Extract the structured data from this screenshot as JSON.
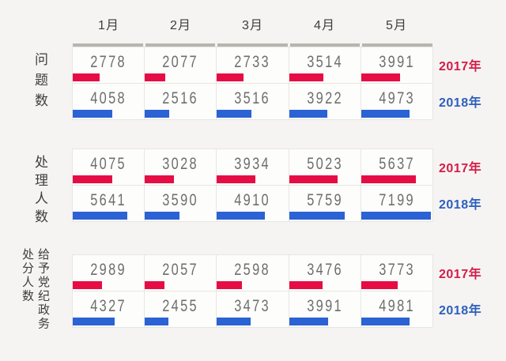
{
  "chart_data": {
    "type": "bar",
    "title": "",
    "categories": [
      "1月",
      "2月",
      "3月",
      "4月",
      "5月"
    ],
    "scale_max": 7350,
    "legend_position": "right",
    "grid": true,
    "sections": [
      {
        "label": "问题数",
        "series": [
          {
            "name": "2017年",
            "values": [
              2778,
              2077,
              2733,
              3514,
              3991
            ]
          },
          {
            "name": "2018年",
            "values": [
              4058,
              2516,
              3516,
              3922,
              4973
            ]
          }
        ]
      },
      {
        "label": "处理人数",
        "series": [
          {
            "name": "2017年",
            "values": [
              4075,
              3028,
              3934,
              5023,
              5637
            ]
          },
          {
            "name": "2018年",
            "values": [
              5641,
              3590,
              4910,
              5759,
              7199
            ]
          }
        ]
      },
      {
        "label": "给予党纪政务处分人数",
        "series": [
          {
            "name": "2017年",
            "values": [
              2989,
              2057,
              2598,
              3476,
              3773
            ]
          },
          {
            "name": "2018年",
            "values": [
              4327,
              2455,
              3473,
              3991,
              4981
            ]
          }
        ]
      }
    ]
  },
  "colors": {
    "bar_2017": "#e60d45",
    "bar_2018": "#2b62d4",
    "label_2017": "#d41c48",
    "label_2018": "#2d5fbe",
    "background": "#f5f4f2",
    "cell": "#fdfdfc",
    "grid_border": "#e8e6e2",
    "column_topbar": "#b8b4af",
    "value_text": "#6e6e6e",
    "heading_text": "#3d3d3d"
  }
}
